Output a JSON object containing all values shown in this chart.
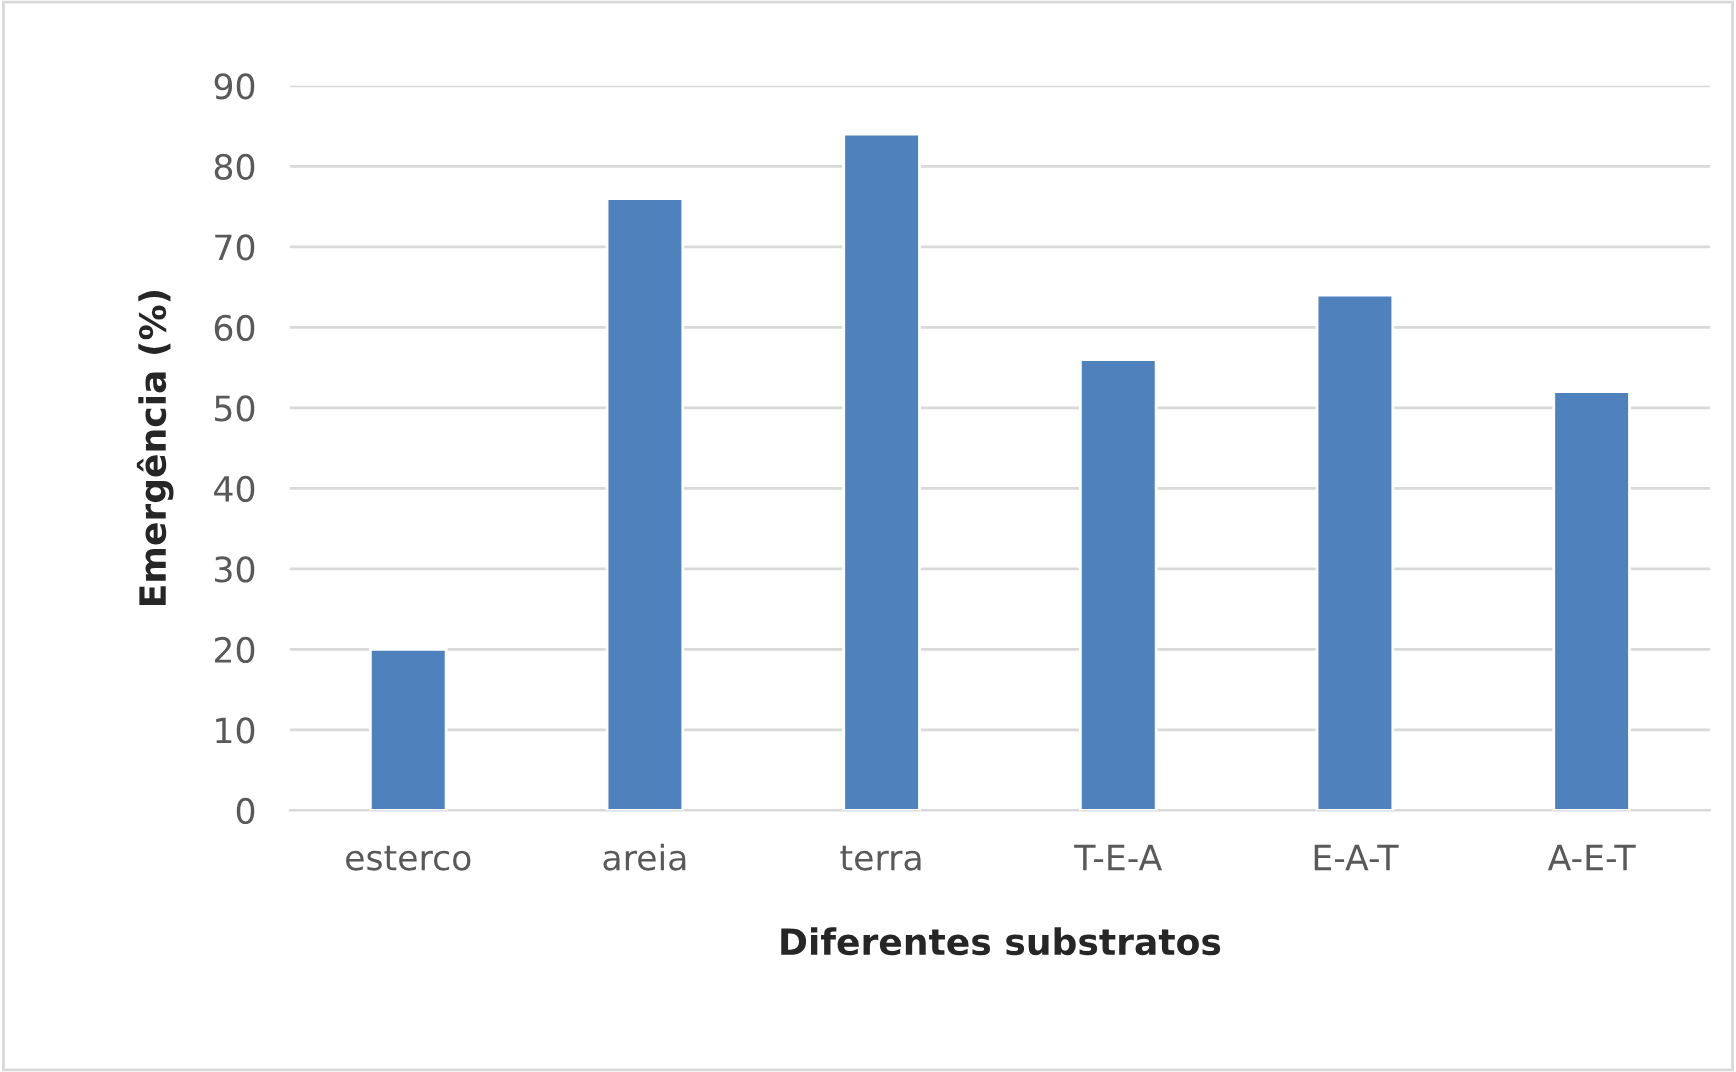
{
  "chart_data": {
    "type": "bar",
    "xlabel": "Diferentes substratos",
    "ylabel": "Emergência (%)",
    "categories": [
      "esterco",
      "areia",
      "terra",
      "T-E-A",
      "E-A-T",
      "A-E-T"
    ],
    "values": [
      20,
      76,
      84,
      56,
      64,
      52
    ],
    "color": "#4f81bd",
    "ylim": [
      0,
      90
    ],
    "yticks": [
      0,
      10,
      20,
      30,
      40,
      50,
      60,
      70,
      80,
      90
    ],
    "grid": "y",
    "legend": false
  }
}
